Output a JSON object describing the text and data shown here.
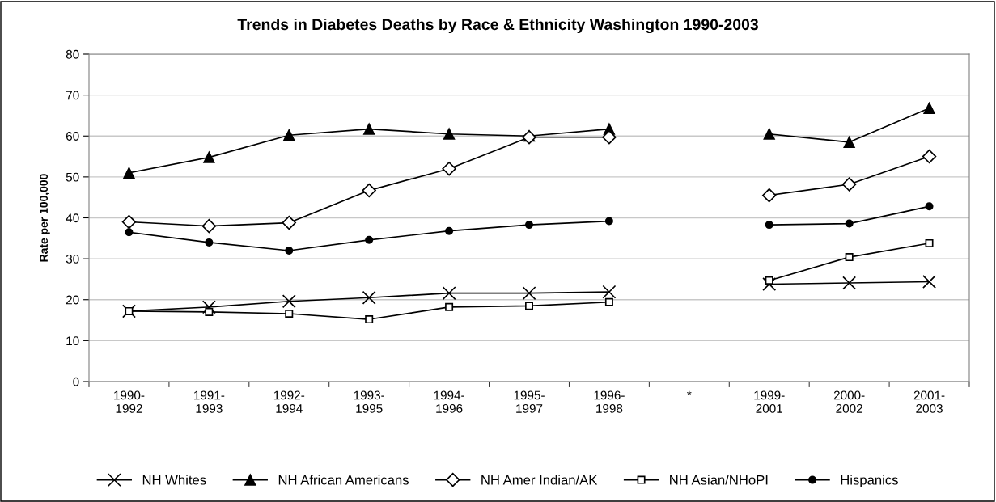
{
  "chart_data": {
    "type": "line",
    "title": "Trends in Diabetes Deaths by Race & Ethnicity Washington 1990-2003",
    "ylabel": "Rate per 100,000",
    "categories": [
      "1990-\n1992",
      "1991-\n1993",
      "1992-\n1994",
      "1993-\n1995",
      "1994-\n1996",
      "1995-\n1997",
      "1996-\n1998",
      "*",
      "1999-\n2001",
      "2000-\n2002",
      "2001-\n2003"
    ],
    "series": [
      {
        "name": "NH Whites",
        "color": "#000000",
        "marker": "cross",
        "values": [
          17.2,
          18.2,
          19.6,
          20.5,
          21.6,
          21.6,
          21.9,
          null,
          23.8,
          24.1,
          24.4
        ]
      },
      {
        "name": "NH African Americans",
        "color": "#000000",
        "marker": "triangle",
        "values": [
          51,
          54.8,
          60.2,
          61.7,
          60.5,
          60,
          61.7,
          null,
          60.5,
          58.5,
          66.8
        ]
      },
      {
        "name": "NH Amer Indian/AK",
        "color": "#000000",
        "marker": "diamond",
        "values": [
          39,
          38,
          38.8,
          46.7,
          52,
          59.7,
          59.7,
          null,
          45.5,
          48.2,
          55
        ]
      },
      {
        "name": "NH Asian/NHoPI",
        "color": "#000000",
        "marker": "square",
        "values": [
          17.2,
          17,
          16.6,
          15.2,
          18.2,
          18.5,
          19.4,
          null,
          24.7,
          30.4,
          33.8
        ]
      },
      {
        "name": "Hispanics",
        "color": "#000000",
        "marker": "circle",
        "values": [
          36.5,
          34,
          32,
          34.6,
          36.8,
          38.3,
          39.2,
          null,
          38.3,
          38.6,
          42.8
        ]
      }
    ],
    "ylim": [
      0,
      80
    ],
    "yticks": [
      0,
      10,
      20,
      30,
      40,
      50,
      60,
      70,
      80
    ],
    "grid": "y",
    "legend": "bottom",
    "line_style": "solid"
  }
}
